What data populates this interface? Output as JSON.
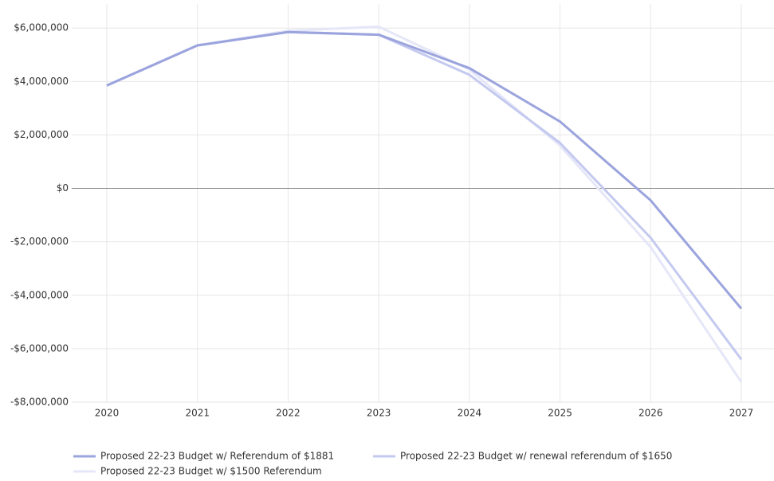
{
  "chart_data": {
    "type": "line",
    "categories": [
      "2020",
      "2021",
      "2022",
      "2023",
      "2024",
      "2025",
      "2026",
      "2027"
    ],
    "series": [
      {
        "name": "Proposed 22-23 Budget w/ Referendum of $1881",
        "color": "#9ba4dd",
        "values": [
          3850000,
          5350000,
          5850000,
          5750000,
          4500000,
          2500000,
          -450000,
          -4500000
        ]
      },
      {
        "name": "Proposed 22-23 Budget w/ renewal referendum of $1650",
        "color": "#c4c9ef",
        "values": [
          3850000,
          5350000,
          5850000,
          5750000,
          4250000,
          1700000,
          -1850000,
          -6400000
        ]
      },
      {
        "name": "Proposed 22-23 Budget w/ $1500 Referendum",
        "color": "#e5e7f8",
        "values": [
          3850000,
          5350000,
          5900000,
          6050000,
          4450000,
          1600000,
          -2200000,
          -7250000
        ]
      }
    ],
    "ylim": [
      -8000000,
      6900000
    ],
    "yticks": [
      {
        "value": -8000000,
        "label": "-$8,000,000"
      },
      {
        "value": -6000000,
        "label": "-$6,000,000"
      },
      {
        "value": -4000000,
        "label": "-$4,000,000"
      },
      {
        "value": -2000000,
        "label": "-$2,000,000"
      },
      {
        "value": 0,
        "label": "$0"
      },
      {
        "value": 2000000,
        "label": "$2,000,000"
      },
      {
        "value": 4000000,
        "label": "$4,000,000"
      },
      {
        "value": 6000000,
        "label": "$6,000,000"
      }
    ],
    "grid": true
  }
}
